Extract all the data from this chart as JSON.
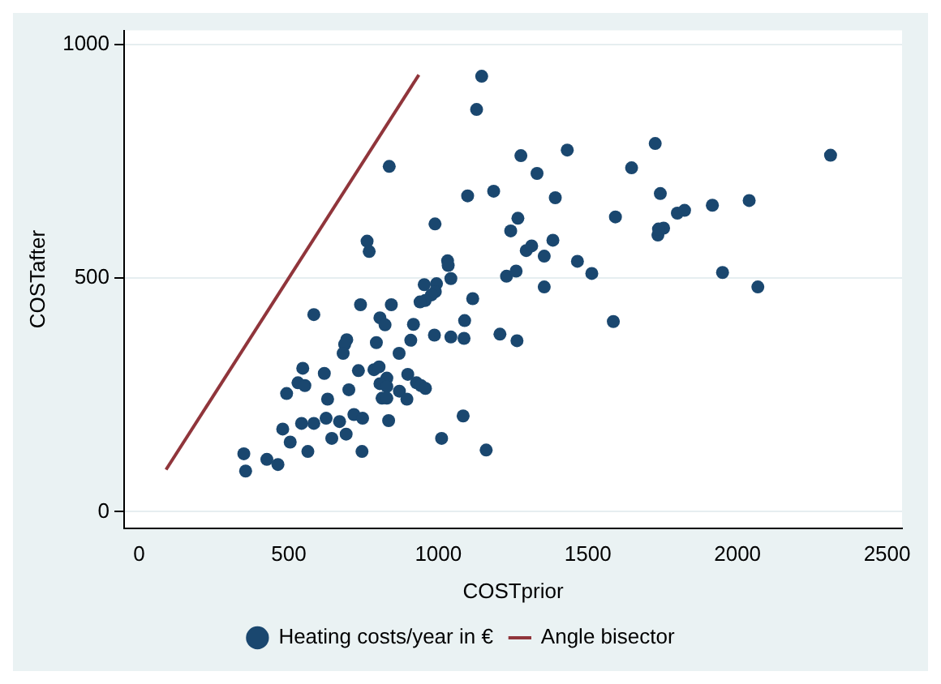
{
  "chart_data": {
    "type": "scatter",
    "xlabel": "COSTprior",
    "ylabel": "COSTafter",
    "xlim": [
      -50,
      2550
    ],
    "xticks": [
      0,
      500,
      1000,
      1500,
      2000,
      2500
    ],
    "ylim": [
      -35,
      1030
    ],
    "yticks": [
      0,
      500,
      1000
    ],
    "grid": "y",
    "legend": "bottom",
    "marker": "circle",
    "series": [
      {
        "name": "Heating costs/year in €",
        "color": "#1a476f",
        "x": [
          1145,
          1128,
          836,
          1098,
          1185,
          989,
          762,
          769,
          1031,
          1033,
          1042,
          953,
          994,
          990,
          977,
          956,
          939,
          1115,
          1228,
          1242,
          1266,
          1260,
          1206,
          1263,
          1088,
          1086,
          1042,
          987,
          917,
          908,
          869,
          843,
          740,
          805,
          822,
          793,
          694,
          687,
          682,
          584,
          733,
          785,
          802,
          898,
          927,
          942,
          957,
          828,
          805,
          828,
          812,
          828,
          870,
          895,
          834,
          701,
          619,
          630,
          547,
          531,
          554,
          493,
          543,
          584,
          625,
          670,
          718,
          747,
          692,
          644,
          745,
          564,
          480,
          505,
          427,
          464,
          350,
          356,
          1011,
          1083,
          1160,
          1276,
          1431,
          1330,
          1391,
          1294,
          1312,
          1383,
          1354,
          1465,
          1513,
          1354,
          1585,
          1592,
          1646,
          1725,
          1742,
          1734,
          1753,
          1736,
          1799,
          1823,
          1916,
          2039,
          1950,
          2068,
          2311
        ],
        "values": [
          932,
          861,
          739,
          676,
          686,
          616,
          579,
          557,
          537,
          527,
          499,
          486,
          488,
          471,
          464,
          452,
          449,
          456,
          504,
          601,
          628,
          515,
          380,
          366,
          409,
          371,
          374,
          378,
          401,
          367,
          339,
          443,
          443,
          415,
          400,
          362,
          368,
          358,
          339,
          422,
          302,
          304,
          310,
          294,
          276,
          270,
          264,
          286,
          274,
          268,
          243,
          243,
          258,
          241,
          195,
          261,
          296,
          241,
          307,
          276,
          270,
          253,
          189,
          189,
          200,
          193,
          208,
          200,
          166,
          157,
          129,
          129,
          177,
          149,
          112,
          101,
          124,
          87,
          157,
          205,
          132,
          762,
          774,
          724,
          672,
          559,
          569,
          581,
          547,
          536,
          510,
          481,
          407,
          631,
          736,
          788,
          681,
          592,
          607,
          605,
          639,
          645,
          656,
          666,
          512,
          481,
          763
        ]
      },
      {
        "name": "Angle bisector",
        "color": "#90353b",
        "type": "line",
        "marker": "none",
        "x": [
          90,
          935
        ],
        "values": [
          90,
          935
        ]
      }
    ]
  }
}
